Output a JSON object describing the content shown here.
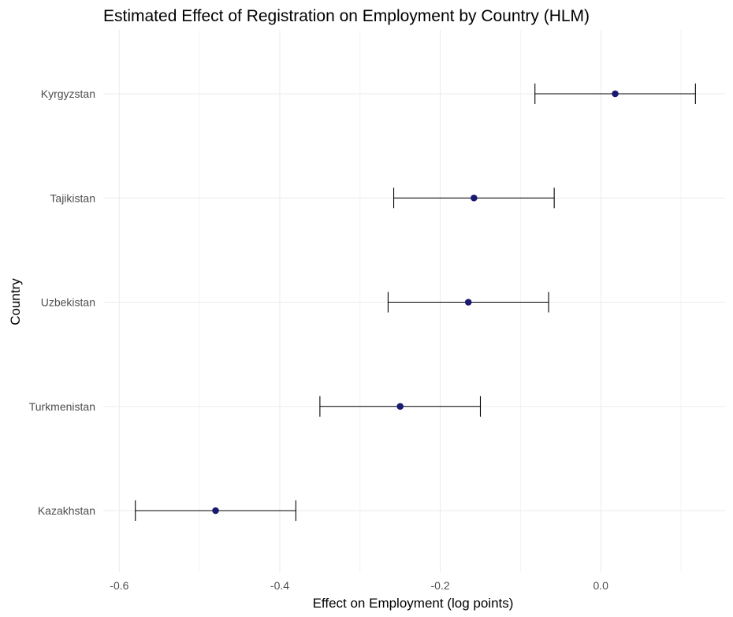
{
  "chart_data": {
    "type": "scatter",
    "subtype": "point-with-errorbars",
    "title": "Estimated Effect of Registration on Employment by Country (HLM)",
    "xlabel": "Effect on Employment (log points)",
    "ylabel": "Country",
    "xlim": [
      -0.62,
      0.155
    ],
    "xticks": [
      -0.6,
      -0.4,
      -0.2,
      0.0
    ],
    "xtick_labels": [
      "-0.6",
      "-0.4",
      "-0.2",
      "0.0"
    ],
    "grid": true,
    "legend": "none",
    "point_color": "#191970",
    "errorbar_color": "#000000",
    "categories": [
      "Kazakhstan",
      "Turkmenistan",
      "Uzbekistan",
      "Tajikistan",
      "Kyrgyzstan"
    ],
    "series": [
      {
        "estimate": [
          -0.48,
          -0.25,
          -0.165,
          -0.158,
          0.018
        ],
        "ci_lower": [
          -0.58,
          -0.35,
          -0.265,
          -0.258,
          -0.082
        ],
        "ci_upper": [
          -0.38,
          -0.15,
          -0.065,
          -0.058,
          0.118
        ]
      }
    ]
  }
}
